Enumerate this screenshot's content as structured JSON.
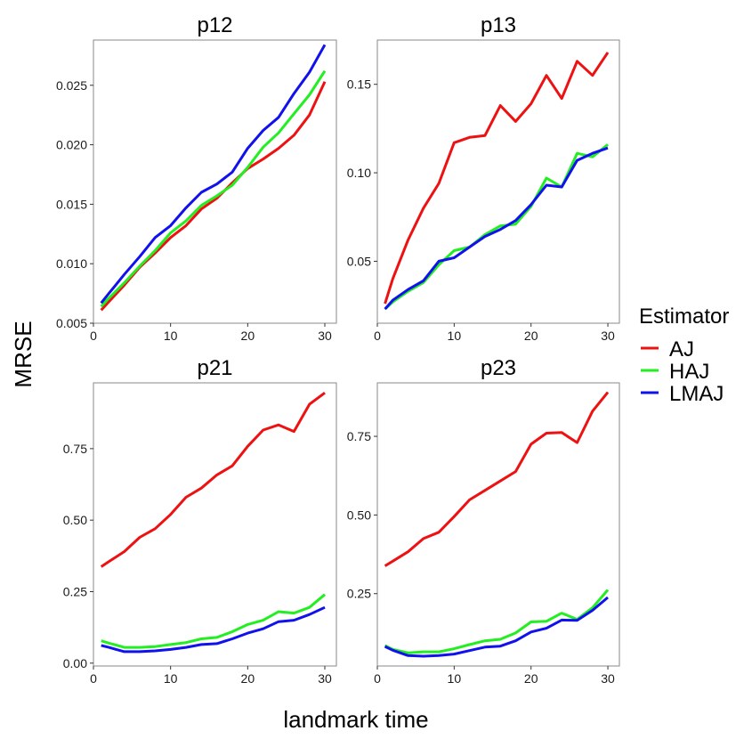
{
  "xlabel": "landmark time",
  "ylabel": "MRSE",
  "legend": {
    "title": "Estimator",
    "entries": [
      {
        "name": "AJ",
        "color": "#ee1111"
      },
      {
        "name": "HAJ",
        "color": "#22ee22"
      },
      {
        "name": "LMAJ",
        "color": "#1111ee"
      }
    ]
  },
  "chart_data": [
    {
      "type": "line",
      "title": "p12",
      "xlim": [
        0,
        31.5
      ],
      "ylim": [
        0.005,
        0.0288
      ],
      "xticks": [
        0,
        10,
        20,
        30
      ],
      "xtick_labels": [
        "0",
        "10",
        "20",
        "30"
      ],
      "yticks": [
        0.005,
        0.01,
        0.015,
        0.02,
        0.025
      ],
      "ytick_labels": [
        "0.005",
        "0.010",
        "0.015",
        "0.020",
        "0.025"
      ],
      "x": [
        1,
        2,
        4,
        6,
        8,
        10,
        12,
        14,
        16,
        18,
        20,
        22,
        24,
        26,
        28,
        30
      ],
      "series": [
        {
          "name": "AJ",
          "values": [
            0.0061,
            0.0068,
            0.0082,
            0.0097,
            0.0109,
            0.0122,
            0.0132,
            0.0146,
            0.0155,
            0.0168,
            0.018,
            0.0188,
            0.0197,
            0.0208,
            0.0225,
            0.0253
          ]
        },
        {
          "name": "HAJ",
          "values": [
            0.0064,
            0.0071,
            0.0084,
            0.0098,
            0.0111,
            0.0126,
            0.0136,
            0.0149,
            0.0157,
            0.0166,
            0.0181,
            0.0198,
            0.021,
            0.0226,
            0.0242,
            0.0262
          ]
        },
        {
          "name": "LMAJ",
          "values": [
            0.0067,
            0.0075,
            0.0091,
            0.0106,
            0.0122,
            0.0132,
            0.0147,
            0.016,
            0.0167,
            0.0177,
            0.0197,
            0.0212,
            0.0223,
            0.0243,
            0.0261,
            0.0284
          ]
        }
      ]
    },
    {
      "type": "line",
      "title": "p13",
      "xlim": [
        0,
        31.5
      ],
      "ylim": [
        0.015,
        0.175
      ],
      "xticks": [
        0,
        10,
        20,
        30
      ],
      "xtick_labels": [
        "0",
        "10",
        "20",
        "30"
      ],
      "yticks": [
        0.05,
        0.1,
        0.15
      ],
      "ytick_labels": [
        "0.05",
        "0.10",
        "0.15"
      ],
      "x": [
        1,
        2,
        4,
        6,
        8,
        10,
        12,
        14,
        16,
        18,
        20,
        22,
        24,
        26,
        28,
        30
      ],
      "series": [
        {
          "name": "AJ",
          "values": [
            0.026,
            0.04,
            0.062,
            0.08,
            0.094,
            0.117,
            0.12,
            0.121,
            0.138,
            0.129,
            0.139,
            0.155,
            0.142,
            0.163,
            0.155,
            0.168
          ]
        },
        {
          "name": "HAJ",
          "values": [
            0.023,
            0.027,
            0.033,
            0.038,
            0.048,
            0.056,
            0.058,
            0.065,
            0.07,
            0.071,
            0.081,
            0.097,
            0.092,
            0.111,
            0.109,
            0.116
          ]
        },
        {
          "name": "LMAJ",
          "values": [
            0.023,
            0.028,
            0.034,
            0.039,
            0.05,
            0.052,
            0.058,
            0.064,
            0.068,
            0.073,
            0.082,
            0.093,
            0.092,
            0.107,
            0.111,
            0.114
          ]
        }
      ]
    },
    {
      "type": "line",
      "title": "p21",
      "xlim": [
        0,
        31.5
      ],
      "ylim": [
        -0.01,
        0.98
      ],
      "xticks": [
        0,
        10,
        20,
        30
      ],
      "xtick_labels": [
        "0",
        "10",
        "20",
        "30"
      ],
      "yticks": [
        0.0,
        0.25,
        0.5,
        0.75
      ],
      "ytick_labels": [
        "0.00",
        "0.25",
        "0.50",
        "0.75"
      ],
      "x": [
        1,
        2,
        4,
        6,
        8,
        10,
        12,
        14,
        16,
        18,
        20,
        22,
        24,
        26,
        28,
        30
      ],
      "series": [
        {
          "name": "AJ",
          "values": [
            0.337,
            0.355,
            0.39,
            0.44,
            0.47,
            0.52,
            0.58,
            0.612,
            0.658,
            0.69,
            0.758,
            0.815,
            0.833,
            0.81,
            0.905,
            0.945
          ]
        },
        {
          "name": "HAJ",
          "values": [
            0.078,
            0.07,
            0.055,
            0.055,
            0.058,
            0.065,
            0.072,
            0.085,
            0.09,
            0.11,
            0.135,
            0.15,
            0.18,
            0.175,
            0.195,
            0.24
          ]
        },
        {
          "name": "LMAJ",
          "values": [
            0.062,
            0.055,
            0.04,
            0.04,
            0.043,
            0.048,
            0.055,
            0.065,
            0.068,
            0.085,
            0.105,
            0.12,
            0.145,
            0.15,
            0.17,
            0.195
          ]
        }
      ]
    },
    {
      "type": "line",
      "title": "p23",
      "xlim": [
        0,
        31.5
      ],
      "ylim": [
        0.02,
        0.92
      ],
      "xticks": [
        0,
        10,
        20,
        30
      ],
      "xtick_labels": [
        "0",
        "10",
        "20",
        "30"
      ],
      "yticks": [
        0.25,
        0.5,
        0.75
      ],
      "ytick_labels": [
        "0.25",
        "0.50",
        "0.75"
      ],
      "x": [
        1,
        2,
        4,
        6,
        8,
        10,
        12,
        14,
        16,
        18,
        20,
        22,
        24,
        26,
        28,
        30
      ],
      "series": [
        {
          "name": "AJ",
          "values": [
            0.338,
            0.353,
            0.383,
            0.425,
            0.445,
            0.495,
            0.548,
            0.578,
            0.608,
            0.638,
            0.725,
            0.76,
            0.762,
            0.73,
            0.83,
            0.89
          ]
        },
        {
          "name": "HAJ",
          "values": [
            0.085,
            0.073,
            0.062,
            0.065,
            0.065,
            0.075,
            0.088,
            0.1,
            0.105,
            0.125,
            0.16,
            0.162,
            0.188,
            0.168,
            0.205,
            0.262
          ]
        },
        {
          "name": "LMAJ",
          "values": [
            0.082,
            0.07,
            0.053,
            0.051,
            0.053,
            0.058,
            0.069,
            0.08,
            0.083,
            0.1,
            0.128,
            0.14,
            0.166,
            0.165,
            0.197,
            0.238
          ]
        }
      ]
    }
  ]
}
